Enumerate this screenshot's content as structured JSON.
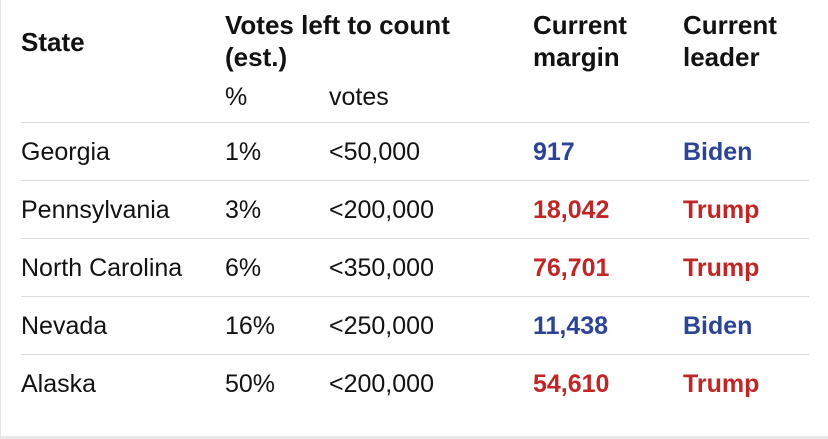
{
  "table": {
    "header": {
      "state": "State",
      "votes_left": "Votes left to count (est.)",
      "percent": "%",
      "votes": "votes",
      "margin": "Current margin",
      "leader": "Current leader"
    },
    "rows": [
      [
        "Georgia",
        "1%",
        "<50,000",
        "917",
        "Biden"
      ],
      [
        "Pennsylvania",
        "3%",
        "<200,000",
        "18,042",
        "Trump"
      ],
      [
        "North Carolina",
        "6%",
        "<350,000",
        "76,701",
        "Trump"
      ],
      [
        "Nevada",
        "16%",
        "<250,000",
        "11,438",
        "Biden"
      ],
      [
        "Alaska",
        "50%",
        "<200,000",
        "54,610",
        "Trump"
      ]
    ]
  },
  "leader_colors": {
    "Biden": "#2b4496",
    "Trump": "#c02626"
  }
}
